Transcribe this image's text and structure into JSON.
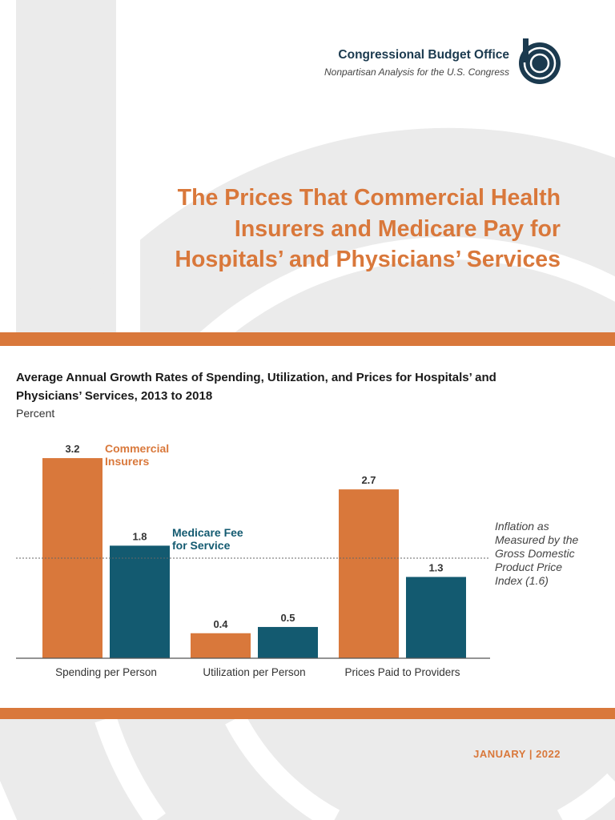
{
  "header": {
    "org_name": "Congressional Budget Office",
    "tagline": "Nonpartisan Analysis for the U.S. Congress",
    "logo_icon": "cbo-logo-icon"
  },
  "report": {
    "title": "The Prices That Commercial Health Insurers and Medicare Pay for Hospitals’ and Physicians’ Services",
    "date": "JANUARY | 2022"
  },
  "colors": {
    "orange": "#d9783b",
    "teal": "#135a70",
    "navy": "#1b3a4f",
    "gray_bg": "#ebebeb"
  },
  "chart_data": {
    "type": "bar",
    "title": "Average Annual Growth Rates of Spending, Utilization, and Prices for Hospitals’ and Physicians’ Services, 2013 to 2018",
    "ylabel": "Percent",
    "xlabel": "",
    "categories": [
      "Spending per Person",
      "Utilization per Person",
      "Prices Paid to Providers"
    ],
    "series": [
      {
        "name": "Commercial Insurers",
        "color": "#d9783b",
        "values": [
          3.2,
          0.4,
          2.7
        ],
        "labels": [
          "3.2",
          "0.4",
          "2.7"
        ]
      },
      {
        "name": "Medicare Fee for Service",
        "color": "#135a70",
        "values": [
          1.8,
          0.5,
          1.3
        ],
        "labels": [
          "1.8",
          "0.5",
          "1.3"
        ]
      }
    ],
    "reference_line": {
      "value": 1.6,
      "style": "dotted",
      "label": "Inflation as Measured by the Gross Domestic Product Price Index (1.6)"
    },
    "ylim": [
      0,
      3.2
    ],
    "grid": false,
    "legend": "inline labels next to first bars"
  }
}
